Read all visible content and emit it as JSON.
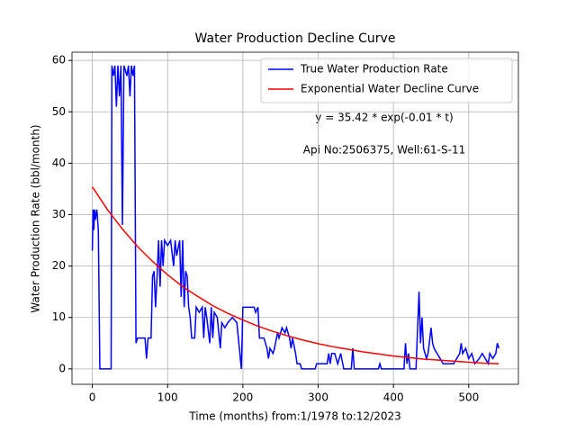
{
  "chart_data": {
    "type": "line",
    "title": "Water Production Decline Curve",
    "xlabel": "Time (months) from:1/1978 to:12/2023",
    "ylabel": "Water Production Rate (bbl/month)",
    "annotations": [
      "y = 35.42 * exp(-0.01 * t)",
      "Api No:2506375, Well:61-S-11"
    ],
    "xlim": [
      -27,
      566
    ],
    "ylim": [
      -3,
      61.6
    ],
    "xticks": [
      0,
      100,
      200,
      300,
      400,
      500
    ],
    "yticks": [
      0,
      10,
      20,
      30,
      40,
      50,
      60
    ],
    "grid": true,
    "legend": "upper right",
    "series": [
      {
        "name": "True Water Production Rate",
        "color": "#0000ff",
        "x": [
          0,
          1,
          2,
          3,
          4,
          6,
          8,
          10,
          25,
          26,
          28,
          30,
          32,
          34,
          36,
          38,
          40,
          42,
          46,
          48,
          50,
          52,
          54,
          56,
          58,
          60,
          70,
          72,
          74,
          78,
          80,
          82,
          84,
          86,
          88,
          90,
          92,
          94,
          96,
          100,
          104,
          108,
          110,
          112,
          116,
          118,
          120,
          122,
          124,
          126,
          128,
          130,
          132,
          136,
          138,
          142,
          146,
          148,
          150,
          152,
          156,
          158,
          160,
          162,
          166,
          170,
          172,
          176,
          180,
          186,
          192,
          198,
          200,
          210,
          215,
          217,
          220,
          222,
          228,
          232,
          234,
          236,
          240,
          242,
          246,
          248,
          252,
          256,
          258,
          262,
          264,
          266,
          270,
          272,
          276,
          278,
          296,
          298,
          312,
          314,
          316,
          318,
          322,
          326,
          330,
          334,
          344,
          346,
          348,
          380,
          382,
          384,
          414,
          416,
          418,
          420,
          422,
          430,
          434,
          436,
          438,
          440,
          444,
          446,
          450,
          452,
          454,
          458,
          462,
          466,
          470,
          480,
          488,
          490,
          492,
          496,
          500,
          504,
          508,
          514,
          518,
          522,
          526,
          528,
          532,
          536,
          538,
          540
        ],
        "values": [
          23,
          31,
          27,
          31,
          29,
          31,
          27,
          0,
          0,
          59,
          57,
          59,
          51,
          59,
          53,
          59,
          28,
          59,
          57,
          59,
          53,
          59,
          57,
          59,
          5,
          6,
          6,
          2,
          6,
          6,
          18,
          19,
          12,
          18,
          25,
          16,
          25,
          20,
          25,
          24,
          25,
          20,
          25,
          22,
          25,
          14,
          25,
          12,
          19,
          18,
          12,
          10,
          6,
          6,
          12,
          11,
          12,
          6,
          12,
          10,
          5,
          12,
          6,
          11,
          10,
          4,
          9,
          8,
          9,
          10,
          9,
          0,
          12,
          12,
          12,
          11,
          12,
          6,
          6,
          4,
          2,
          4,
          3,
          4,
          7,
          6,
          8,
          7,
          8,
          6,
          4,
          6,
          3,
          1,
          1,
          0,
          0,
          1,
          1,
          3,
          1,
          3,
          3,
          1,
          3,
          0,
          0,
          4,
          0,
          0,
          1,
          0,
          0,
          5,
          1,
          3,
          0,
          0,
          15,
          5,
          10,
          4,
          2,
          3,
          8,
          5,
          4,
          3,
          2,
          1,
          1,
          1,
          3,
          5,
          3,
          4,
          2,
          3,
          1,
          2,
          3,
          2,
          1,
          3,
          2,
          3,
          5,
          4
        ]
      },
      {
        "name": "Exponential Water Decline Curve",
        "color": "#ff0000",
        "x": [
          0,
          20,
          40,
          60,
          80,
          100,
          120,
          140,
          160,
          180,
          200,
          220,
          240,
          260,
          280,
          300,
          320,
          340,
          360,
          380,
          400,
          420,
          440,
          460,
          480,
          500,
          520,
          540
        ],
        "values": [
          35.42,
          31.0,
          27.2,
          23.8,
          20.9,
          18.3,
          16.0,
          14.1,
          12.3,
          10.8,
          9.5,
          8.3,
          7.3,
          6.4,
          5.6,
          4.9,
          4.3,
          3.8,
          3.3,
          2.9,
          2.5,
          2.2,
          1.9,
          1.7,
          1.5,
          1.3,
          1.1,
          1.0
        ]
      }
    ]
  }
}
